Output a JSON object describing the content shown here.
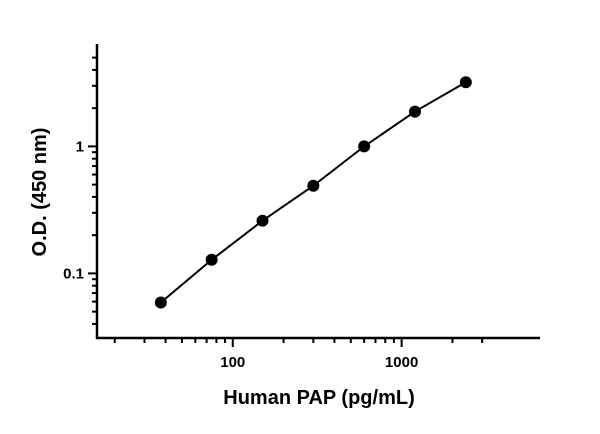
{
  "chart_data": {
    "type": "line",
    "title": "",
    "xlabel": "Human PAP (pg/mL)",
    "ylabel": "O.D. (450 nm)",
    "xscale": "log",
    "yscale": "log",
    "xlim": [
      15.7,
      6600
    ],
    "ylim": [
      0.031,
      6.4
    ],
    "x_major_ticks": [
      100,
      1000
    ],
    "x_tick_labels": [
      "100",
      "1000"
    ],
    "x_minor_ticks": [
      20,
      30,
      40,
      50,
      60,
      70,
      80,
      90,
      200,
      300,
      400,
      500,
      600,
      700,
      800,
      900,
      2000,
      3000
    ],
    "y_major_ticks": [
      0.1,
      1
    ],
    "y_tick_labels": [
      "0.1",
      "1"
    ],
    "y_minor_ticks": [
      0.04,
      0.05,
      0.06,
      0.07,
      0.08,
      0.09,
      0.2,
      0.3,
      0.4,
      0.5,
      0.6,
      0.7,
      0.8,
      0.9,
      2,
      3,
      4,
      5
    ],
    "grid": false,
    "series": [
      {
        "x": [
          37.5,
          75,
          150,
          300,
          600,
          1200,
          2400
        ],
        "y": [
          0.059,
          0.128,
          0.26,
          0.49,
          1.0,
          1.88,
          3.2
        ],
        "color": "#000000",
        "marker": "circle"
      }
    ]
  }
}
